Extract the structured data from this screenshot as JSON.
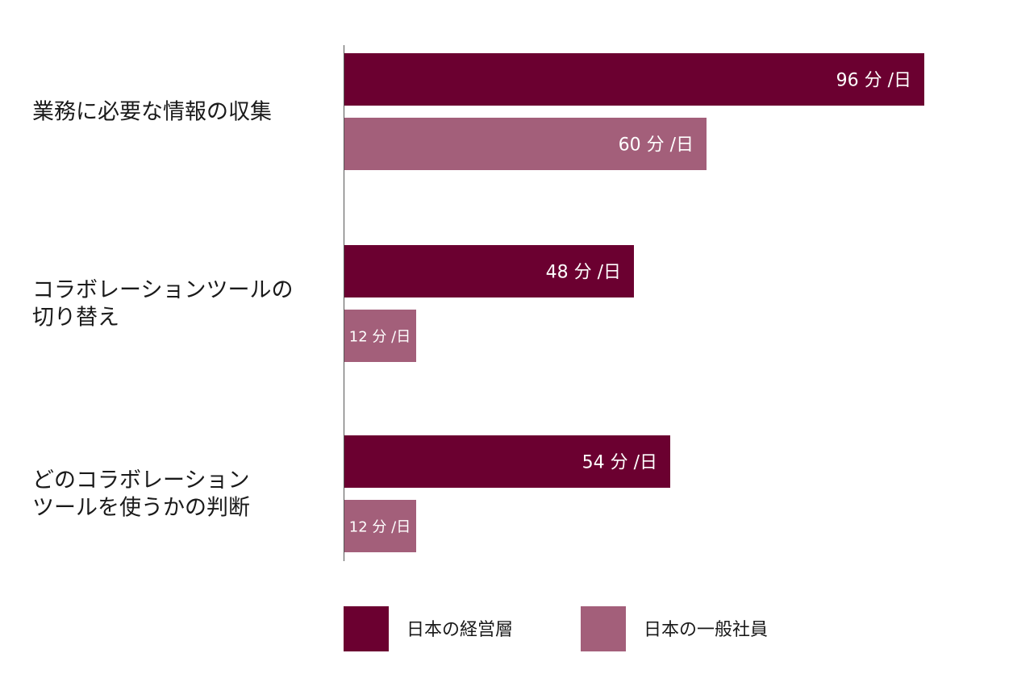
{
  "chart_data": {
    "type": "bar",
    "orientation": "horizontal",
    "categories": [
      [
        "業務に必要な情報の収集"
      ],
      [
        "コラボレーションツールの",
        "切り替え"
      ],
      [
        "どのコラボレーション",
        "ツールを使うかの判断"
      ]
    ],
    "series": [
      {
        "name": "日本の経営層",
        "color": "#6b0030",
        "values": [
          96,
          48,
          54
        ],
        "labels": [
          "96 分 /日",
          "48 分 /日",
          "54 分 /日"
        ]
      },
      {
        "name": "日本の一般社員",
        "color": "#a35f7a",
        "values": [
          60,
          12,
          12
        ],
        "labels": [
          "60 分 /日",
          "12 分 /日",
          "12 分 /日"
        ]
      }
    ],
    "xlim": [
      0,
      100
    ],
    "grid": false,
    "legend_position": "bottom"
  }
}
